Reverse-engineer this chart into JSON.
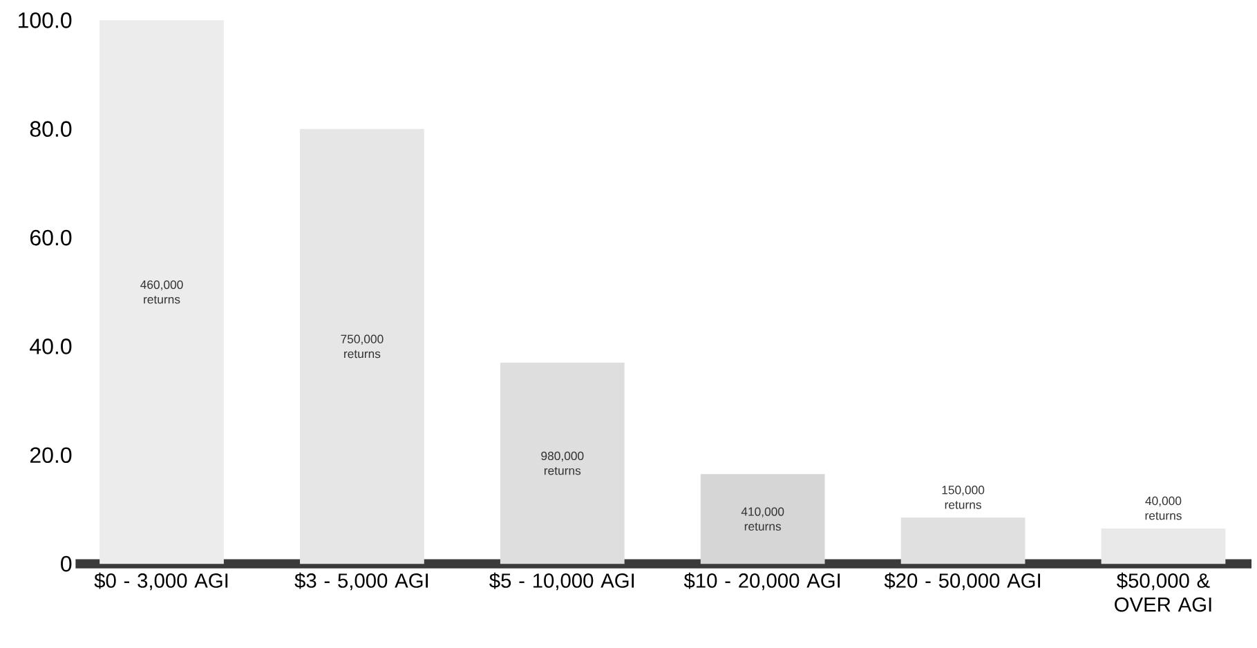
{
  "chart_data": {
    "type": "bar",
    "categories": [
      "$0 - 3,000 AGI",
      "$3 - 5,000 AGI",
      "$5 - 10,000 AGI",
      "$10 - 20,000 AGI",
      "$20 - 50,000 AGI",
      "$50,000 & OVER AGI"
    ],
    "values": [
      100,
      80,
      37,
      16.5,
      8.5,
      6.5
    ],
    "colors": [
      "#ececec",
      "#e6e6e6",
      "#dedede",
      "#d6d6d6",
      "#e0e0e0",
      "#e9e9e9"
    ],
    "ylim": [
      0,
      100
    ],
    "yticks": [
      0,
      {
        "value": 20,
        "label": "20.0"
      },
      {
        "value": 40,
        "label": "40.0"
      },
      {
        "value": 60,
        "label": "60.0"
      },
      {
        "value": 80,
        "label": "80.0"
      },
      {
        "value": 100,
        "label": "100.0"
      }
    ],
    "grid": false,
    "annotations": [
      "460,000 returns",
      "750,000 returns",
      "980,000 returns",
      "410,000 returns",
      "150,000 returns",
      "40,000 returns"
    ]
  }
}
